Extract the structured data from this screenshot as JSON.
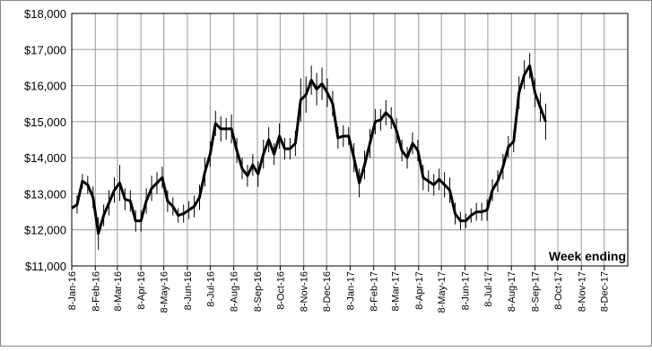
{
  "chart_data": {
    "type": "line",
    "annotation": "Week ending",
    "color": "#000000",
    "grid": true,
    "x": [
      "2016-01-08",
      "2016-01-15",
      "2016-01-22",
      "2016-01-29",
      "2016-02-05",
      "2016-02-12",
      "2016-02-19",
      "2016-02-26",
      "2016-03-04",
      "2016-03-11",
      "2016-03-18",
      "2016-03-25",
      "2016-04-01",
      "2016-04-08",
      "2016-04-15",
      "2016-04-22",
      "2016-04-29",
      "2016-05-06",
      "2016-05-13",
      "2016-05-20",
      "2016-05-27",
      "2016-06-03",
      "2016-06-10",
      "2016-06-17",
      "2016-06-24",
      "2016-07-01",
      "2016-07-08",
      "2016-07-15",
      "2016-07-22",
      "2016-07-29",
      "2016-08-05",
      "2016-08-12",
      "2016-08-19",
      "2016-08-26",
      "2016-09-02",
      "2016-09-09",
      "2016-09-16",
      "2016-09-23",
      "2016-09-30",
      "2016-10-07",
      "2016-10-14",
      "2016-10-21",
      "2016-10-28",
      "2016-11-04",
      "2016-11-11",
      "2016-11-18",
      "2016-11-25",
      "2016-12-02",
      "2016-12-09",
      "2016-12-16",
      "2016-12-23",
      "2016-12-30",
      "2017-01-06",
      "2017-01-13",
      "2017-01-20",
      "2017-01-27",
      "2017-02-03",
      "2017-02-10",
      "2017-02-17",
      "2017-02-24",
      "2017-03-03",
      "2017-03-10",
      "2017-03-17",
      "2017-03-24",
      "2017-03-31",
      "2017-04-07",
      "2017-04-14",
      "2017-04-21",
      "2017-04-28",
      "2017-05-05",
      "2017-05-12",
      "2017-05-19",
      "2017-05-26",
      "2017-06-02",
      "2017-06-09",
      "2017-06-16",
      "2017-06-23",
      "2017-06-30",
      "2017-07-07",
      "2017-07-14",
      "2017-07-21",
      "2017-07-28",
      "2017-08-04",
      "2017-08-11",
      "2017-08-18",
      "2017-08-25",
      "2017-09-01",
      "2017-09-08",
      "2017-09-15",
      "2017-09-22"
    ],
    "values": [
      12600,
      12700,
      13350,
      13250,
      12900,
      11900,
      12400,
      12750,
      13100,
      13300,
      12850,
      12800,
      12250,
      12250,
      12800,
      13150,
      13300,
      13450,
      12800,
      12650,
      12400,
      12450,
      12550,
      12650,
      12900,
      13600,
      14100,
      14950,
      14800,
      14800,
      14800,
      14200,
      13700,
      13500,
      13800,
      13550,
      14100,
      14500,
      14100,
      14600,
      14250,
      14250,
      14400,
      15600,
      15750,
      16150,
      15900,
      16050,
      15800,
      15500,
      14550,
      14600,
      14600,
      14000,
      13300,
      13800,
      14400,
      15000,
      15050,
      15250,
      15100,
      14750,
      14200,
      14000,
      14400,
      14200,
      13450,
      13350,
      13250,
      13400,
      13250,
      13100,
      12450,
      12250,
      12250,
      12400,
      12500,
      12500,
      12550,
      13100,
      13350,
      13750,
      14300,
      14450,
      15800,
      16300,
      16550,
      15800,
      15400,
      15000
    ],
    "errors": [
      200,
      250,
      200,
      250,
      300,
      450,
      300,
      350,
      350,
      500,
      300,
      300,
      300,
      300,
      350,
      350,
      300,
      300,
      300,
      250,
      200,
      250,
      250,
      300,
      350,
      400,
      350,
      350,
      350,
      300,
      400,
      350,
      300,
      300,
      300,
      350,
      400,
      350,
      300,
      350,
      300,
      300,
      350,
      600,
      500,
      400,
      450,
      450,
      400,
      350,
      300,
      300,
      250,
      400,
      400,
      400,
      400,
      350,
      300,
      350,
      300,
      350,
      300,
      300,
      300,
      300,
      350,
      300,
      300,
      300,
      350,
      350,
      300,
      250,
      200,
      200,
      250,
      250,
      300,
      300,
      300,
      350,
      300,
      300,
      450,
      400,
      350,
      400,
      400,
      500
    ],
    "xlim": [
      "2016-01-08",
      "2018-01-08"
    ],
    "xticks": [
      {
        "value": "2016-01-08",
        "label": "8-Jan-16"
      },
      {
        "value": "2016-02-08",
        "label": "8-Feb-16"
      },
      {
        "value": "2016-03-08",
        "label": "8-Mar-16"
      },
      {
        "value": "2016-04-08",
        "label": "8-Apr-16"
      },
      {
        "value": "2016-05-08",
        "label": "8-May-16"
      },
      {
        "value": "2016-06-08",
        "label": "8-Jun-16"
      },
      {
        "value": "2016-07-08",
        "label": "8-Jul-16"
      },
      {
        "value": "2016-08-08",
        "label": "8-Aug-16"
      },
      {
        "value": "2016-09-08",
        "label": "8-Sep-16"
      },
      {
        "value": "2016-10-08",
        "label": "8-Oct-16"
      },
      {
        "value": "2016-11-08",
        "label": "8-Nov-16"
      },
      {
        "value": "2016-12-08",
        "label": "8-Dec-16"
      },
      {
        "value": "2017-01-08",
        "label": "8-Jan-17"
      },
      {
        "value": "2017-02-08",
        "label": "8-Feb-17"
      },
      {
        "value": "2017-03-08",
        "label": "8-Mar-17"
      },
      {
        "value": "2017-04-08",
        "label": "8-Apr-17"
      },
      {
        "value": "2017-05-08",
        "label": "8-May-17"
      },
      {
        "value": "2017-06-08",
        "label": "8-Jun-17"
      },
      {
        "value": "2017-07-08",
        "label": "8-Jul-17"
      },
      {
        "value": "2017-08-08",
        "label": "8-Aug-17"
      },
      {
        "value": "2017-09-08",
        "label": "8-Sep-17"
      },
      {
        "value": "2017-10-08",
        "label": "8-Oct-17"
      },
      {
        "value": "2017-11-08",
        "label": "8-Nov-17"
      },
      {
        "value": "2017-12-08",
        "label": "8-Dec-17"
      }
    ],
    "ylim": [
      11000,
      18000
    ],
    "yticks": [
      {
        "value": 11000,
        "label": "$11,000"
      },
      {
        "value": 12000,
        "label": "$12,000"
      },
      {
        "value": 13000,
        "label": "$13,000"
      },
      {
        "value": 14000,
        "label": "$14,000"
      },
      {
        "value": 15000,
        "label": "$15,000"
      },
      {
        "value": 16000,
        "label": "$16,000"
      },
      {
        "value": 17000,
        "label": "$17,000"
      },
      {
        "value": 18000,
        "label": "$18,000"
      }
    ]
  }
}
